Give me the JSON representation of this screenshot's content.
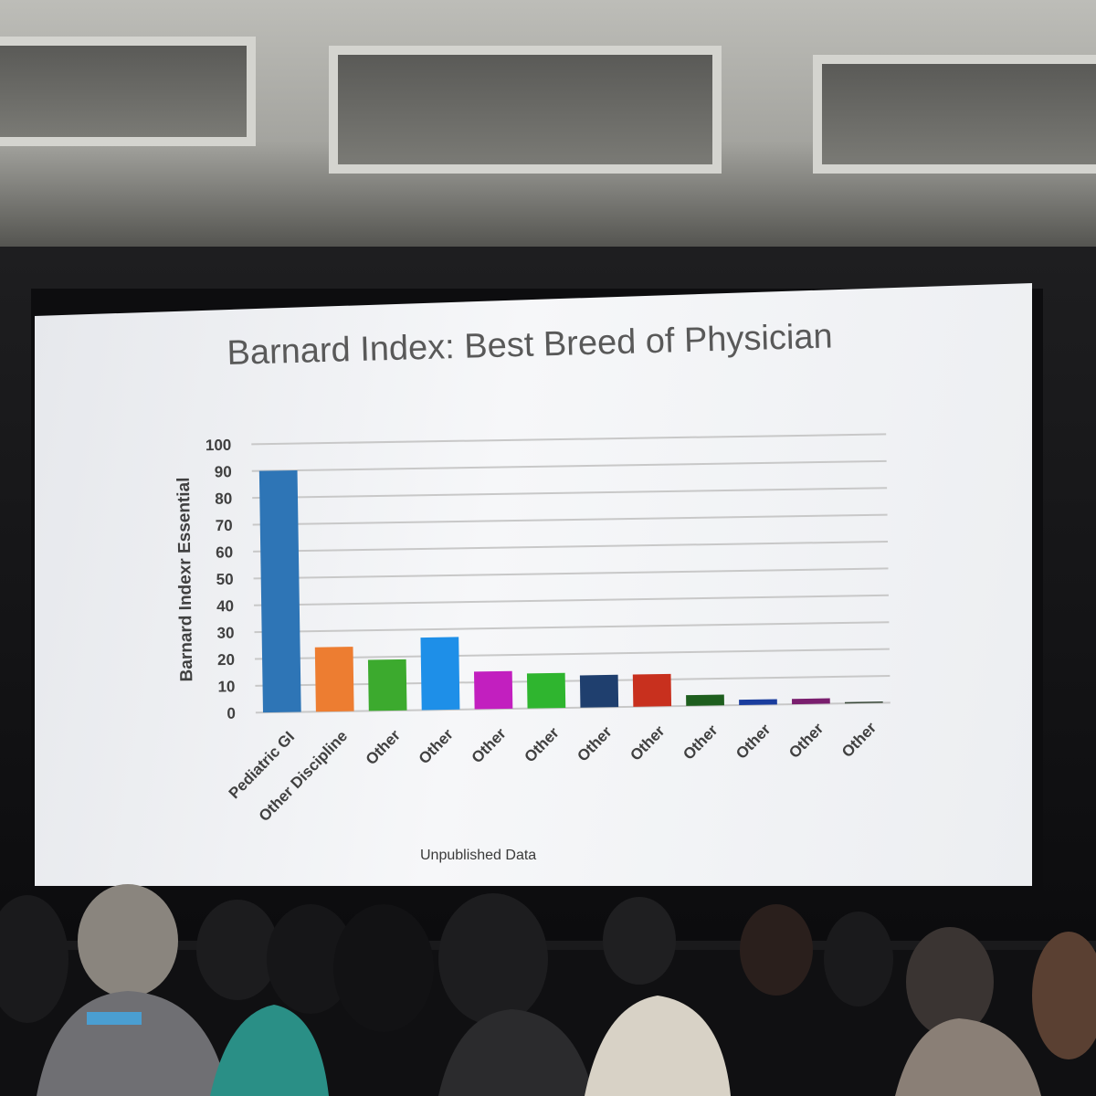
{
  "slide": {
    "title": "Barnard Index: Best Breed of Physician",
    "footnote": "Unpublished Data"
  },
  "chart_data": {
    "type": "bar",
    "title": "Barnard Index: Best Breed of Physician",
    "xlabel": "",
    "ylabel": "Barnard Indexr Essential",
    "ylim": [
      0,
      100
    ],
    "yticks": [
      0,
      10,
      20,
      30,
      40,
      50,
      60,
      70,
      80,
      90,
      100
    ],
    "grid": true,
    "legend": "none",
    "categories": [
      "Pediatric GI",
      "Other Discipline",
      "Other",
      "Other",
      "Other",
      "Other",
      "Other",
      "Other",
      "Other",
      "Other",
      "Other",
      "Other"
    ],
    "values": [
      90,
      24,
      19,
      27,
      14,
      13,
      12,
      12,
      4,
      2,
      2,
      0.5
    ],
    "colors": [
      "#2e75b6",
      "#ed7d31",
      "#3caa2e",
      "#1e8fe8",
      "#c21fbf",
      "#2fb52f",
      "#1f3f6e",
      "#c8301e",
      "#1e5e1e",
      "#1a3d9e",
      "#7a1f6e",
      "#3a4a3a"
    ]
  }
}
